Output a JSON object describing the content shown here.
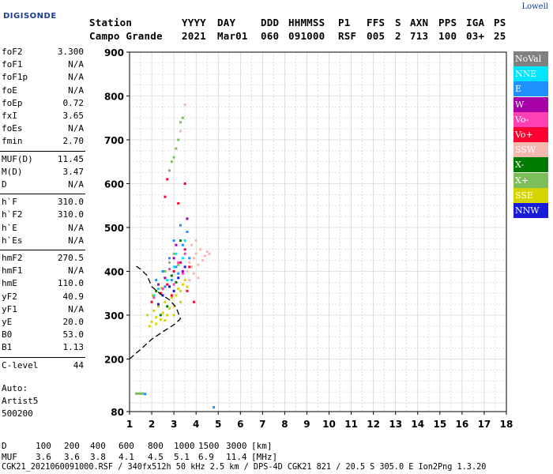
{
  "logo": {
    "line1": "Lowell",
    "line2": "DIGISONDE"
  },
  "header": {
    "labels": [
      "Station",
      "YYYY",
      "DAY",
      "DDD",
      "HHMMSS",
      "P1",
      "FFS",
      "S",
      "AXN",
      "PPS",
      "IGA",
      "PS"
    ],
    "values": [
      "Campo Grande",
      "2021",
      "Mar01",
      "060",
      "091000",
      "RSF",
      "005",
      "2",
      "713",
      "100",
      "03+",
      "25"
    ]
  },
  "params": [
    {
      "group": 1,
      "name": "foF2",
      "value": "3.300"
    },
    {
      "group": 1,
      "name": "foF1",
      "value": "N/A"
    },
    {
      "group": 1,
      "name": "foF1p",
      "value": "N/A"
    },
    {
      "group": 1,
      "name": "foE",
      "value": "N/A"
    },
    {
      "group": 1,
      "name": "foEp",
      "value": "0.72"
    },
    {
      "group": 1,
      "name": "fxI",
      "value": "3.65"
    },
    {
      "group": 1,
      "name": "foEs",
      "value": "N/A"
    },
    {
      "group": 1,
      "name": "fmin",
      "value": "2.70"
    },
    {
      "group": 2,
      "name": "MUF(D)",
      "value": "11.45"
    },
    {
      "group": 2,
      "name": "M(D)",
      "value": "3.47"
    },
    {
      "group": 2,
      "name": "D",
      "value": "N/A"
    },
    {
      "group": 3,
      "name": "h`F",
      "value": "310.0"
    },
    {
      "group": 3,
      "name": "h`F2",
      "value": "310.0"
    },
    {
      "group": 3,
      "name": "h`E",
      "value": "N/A"
    },
    {
      "group": 3,
      "name": "h`Es",
      "value": "N/A"
    },
    {
      "group": 4,
      "name": "hmF2",
      "value": "270.5"
    },
    {
      "group": 4,
      "name": "hmF1",
      "value": "N/A"
    },
    {
      "group": 4,
      "name": "hmE",
      "value": "110.0"
    },
    {
      "group": 4,
      "name": "yF2",
      "value": "40.9"
    },
    {
      "group": 4,
      "name": "yF1",
      "value": "N/A"
    },
    {
      "group": 4,
      "name": "yE",
      "value": "20.0"
    },
    {
      "group": 4,
      "name": "B0",
      "value": "53.0"
    },
    {
      "group": 4,
      "name": "B1",
      "value": "1.13"
    },
    {
      "group": 5,
      "name": "C-level",
      "value": "44"
    }
  ],
  "auto": {
    "line1": "Auto:",
    "line2": "Artist5",
    "line3": "500200"
  },
  "legend": [
    {
      "label": "NoVal",
      "color": "#808080"
    },
    {
      "label": "NNE",
      "color": "#00e5ff"
    },
    {
      "label": "E",
      "color": "#1e90ff"
    },
    {
      "label": "W",
      "color": "#a600a6"
    },
    {
      "label": "Vo-",
      "color": "#ff3fb4"
    },
    {
      "label": "Vo+",
      "color": "#ff0033"
    },
    {
      "label": "SSW",
      "color": "#f4b8b0"
    },
    {
      "label": "X-",
      "color": "#007a00"
    },
    {
      "label": "X+",
      "color": "#7cbf5a"
    },
    {
      "label": "SSE",
      "color": "#d4d400"
    },
    {
      "label": "NNW",
      "color": "#1a1ad9"
    }
  ],
  "footer": {
    "d_label": "D",
    "d_values": [
      "100",
      "200",
      "400",
      "600",
      "800",
      "1000",
      "1500",
      "3000"
    ],
    "d_unit": "[km]",
    "muf_label": "MUF",
    "muf_values": [
      "3.6",
      "3.6",
      "3.8",
      "4.1",
      "4.5",
      "5.1",
      "6.9",
      "11.4"
    ],
    "muf_unit": "[MHz]",
    "source": "CGK21_2021060091000.RSF / 340fx512h 50 kHz 2.5 km / DPS-4D CGK21 821 / 20.5 S 305.0 E Ion2Png 1.3.20"
  },
  "chart_data": {
    "type": "scatter",
    "title": "",
    "xlabel": "",
    "ylabel": "",
    "xlim": [
      1,
      18
    ],
    "ylim": [
      80,
      900
    ],
    "xticks": [
      1,
      2,
      3,
      4,
      5,
      6,
      7,
      8,
      9,
      10,
      11,
      12,
      13,
      14,
      15,
      16,
      17,
      18
    ],
    "yticks": [
      80,
      200,
      300,
      400,
      500,
      600,
      700,
      800,
      900
    ],
    "grid": true,
    "series": [
      {
        "name": "SSE",
        "color": "#d4d400",
        "points": [
          [
            1.8,
            300
          ],
          [
            2.0,
            285
          ],
          [
            2.1,
            310
          ],
          [
            2.2,
            295
          ],
          [
            2.3,
            320
          ],
          [
            2.4,
            290
          ],
          [
            2.5,
            305
          ],
          [
            2.6,
            330
          ],
          [
            2.7,
            300
          ],
          [
            2.8,
            315
          ],
          [
            2.9,
            340
          ],
          [
            3.0,
            320
          ],
          [
            3.1,
            345
          ],
          [
            3.2,
            360
          ],
          [
            3.3,
            355
          ],
          [
            3.4,
            370
          ],
          [
            3.5,
            380
          ],
          [
            3.6,
            365
          ],
          [
            1.9,
            275
          ],
          [
            2.2,
            280
          ],
          [
            2.6,
            288
          ],
          [
            3.0,
            300
          ],
          [
            3.3,
            330
          ],
          [
            2.05,
            345
          ],
          [
            2.45,
            362
          ]
        ]
      },
      {
        "name": "SSW",
        "color": "#f4b8b0",
        "points": [
          [
            3.6,
            400
          ],
          [
            3.7,
            420
          ],
          [
            3.8,
            410
          ],
          [
            3.9,
            430
          ],
          [
            4.0,
            440
          ],
          [
            4.1,
            415
          ],
          [
            4.2,
            450
          ],
          [
            4.3,
            425
          ],
          [
            4.4,
            435
          ],
          [
            4.5,
            445
          ],
          [
            4.6,
            440
          ],
          [
            3.7,
            380
          ],
          [
            3.9,
            395
          ],
          [
            4.1,
            385
          ],
          [
            3.8,
            460
          ],
          [
            4.0,
            470
          ],
          [
            3.5,
            780
          ],
          [
            3.3,
            720
          ]
        ]
      },
      {
        "name": "X+",
        "color": "#7cbf5a",
        "points": [
          [
            2.8,
            630
          ],
          [
            2.9,
            650
          ],
          [
            3.0,
            660
          ],
          [
            3.1,
            680
          ],
          [
            3.2,
            700
          ],
          [
            3.3,
            740
          ],
          [
            3.4,
            750
          ],
          [
            2.6,
            400
          ],
          [
            2.8,
            420
          ],
          [
            3.0,
            440
          ],
          [
            3.2,
            415
          ],
          [
            1.3,
            121
          ],
          [
            1.4,
            121
          ],
          [
            1.5,
            121
          ],
          [
            1.6,
            121
          ]
        ]
      },
      {
        "name": "E",
        "color": "#1e90ff",
        "points": [
          [
            2.2,
            380
          ],
          [
            2.5,
            400
          ],
          [
            2.8,
            430
          ],
          [
            3.1,
            410
          ],
          [
            3.4,
            460
          ],
          [
            3.6,
            490
          ],
          [
            3.7,
            430
          ],
          [
            3.2,
            395
          ],
          [
            2.6,
            365
          ],
          [
            2.9,
            380
          ],
          [
            3.0,
            470
          ],
          [
            3.3,
            505
          ],
          [
            1.7,
            120
          ],
          [
            4.8,
            90
          ]
        ]
      },
      {
        "name": "NNE",
        "color": "#00e5ff",
        "points": [
          [
            2.3,
            360
          ],
          [
            2.7,
            380
          ],
          [
            3.1,
            440
          ],
          [
            3.5,
            470
          ],
          [
            3.6,
            520
          ],
          [
            3.0,
            410
          ],
          [
            3.4,
            430
          ],
          [
            2.1,
            345
          ]
        ]
      },
      {
        "name": "Vo+",
        "color": "#ff0033",
        "points": [
          [
            2.0,
            330
          ],
          [
            2.4,
            350
          ],
          [
            2.7,
            370
          ],
          [
            3.0,
            400
          ],
          [
            3.3,
            420
          ],
          [
            3.5,
            450
          ],
          [
            3.7,
            410
          ],
          [
            3.9,
            330
          ],
          [
            3.6,
            355
          ],
          [
            2.9,
            345
          ],
          [
            2.6,
            570
          ],
          [
            3.2,
            555
          ],
          [
            2.7,
            610
          ],
          [
            3.5,
            600
          ]
        ]
      },
      {
        "name": "Vo-",
        "color": "#ff3fb4",
        "points": [
          [
            2.1,
            340
          ],
          [
            2.5,
            360
          ],
          [
            2.9,
            390
          ],
          [
            3.2,
            420
          ],
          [
            3.5,
            440
          ],
          [
            3.0,
            370
          ],
          [
            3.4,
            395
          ],
          [
            2.8,
            405
          ]
        ]
      },
      {
        "name": "W",
        "color": "#a600a6",
        "points": [
          [
            2.6,
            385
          ],
          [
            3.0,
            430
          ],
          [
            3.4,
            400
          ],
          [
            2.3,
            370
          ],
          [
            3.1,
            460
          ],
          [
            3.6,
            520
          ]
        ]
      },
      {
        "name": "X-",
        "color": "#007a00",
        "points": [
          [
            2.4,
            300
          ],
          [
            2.7,
            320
          ],
          [
            2.9,
            390
          ],
          [
            3.1,
            375
          ],
          [
            3.3,
            470
          ],
          [
            2.2,
            355
          ]
        ]
      },
      {
        "name": "NNW",
        "color": "#1a1ad9",
        "points": [
          [
            2.5,
            345
          ],
          [
            2.8,
            365
          ],
          [
            3.2,
            385
          ],
          [
            3.5,
            410
          ],
          [
            3.0,
            355
          ],
          [
            2.3,
            325
          ]
        ]
      }
    ],
    "profile": [
      [
        1.0,
        200
      ],
      [
        1.5,
        222
      ],
      [
        2.0,
        245
      ],
      [
        2.5,
        262
      ],
      [
        3.0,
        278
      ],
      [
        3.3,
        292
      ],
      [
        3.2,
        305
      ],
      [
        3.1,
        318
      ],
      [
        2.8,
        335
      ],
      [
        2.4,
        348
      ],
      [
        2.0,
        365
      ],
      [
        1.8,
        390
      ],
      [
        1.5,
        405
      ],
      [
        1.2,
        415
      ]
    ]
  }
}
